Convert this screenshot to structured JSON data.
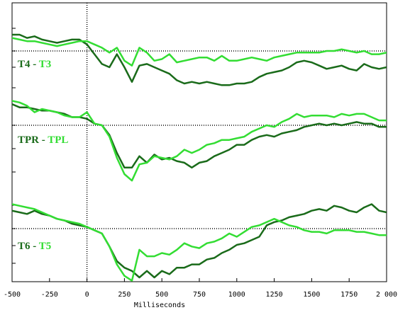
{
  "chart_data": {
    "type": "line",
    "xlabel": "Milliseconds",
    "xlim": [
      -500,
      2000
    ],
    "x_ticks": [
      -500,
      -250,
      0,
      250,
      500,
      750,
      1000,
      1250,
      1500,
      1750,
      2000
    ],
    "x_tick_labels": [
      "-500",
      "-250",
      "0",
      "250",
      "500",
      "750",
      "1000",
      "1250",
      "1500",
      "1750",
      "2 000"
    ],
    "ylim": [
      -1.8,
      1.2
    ],
    "grid": false,
    "reference_lines": {
      "x": 0,
      "y": 0
    },
    "colors": {
      "dark": "#1a6b1a",
      "light": "#33dd33",
      "axis": "#000000"
    },
    "x": [
      -600,
      -500,
      -450,
      -400,
      -350,
      -300,
      -250,
      -200,
      -150,
      -100,
      -50,
      0,
      50,
      100,
      150,
      200,
      250,
      300,
      350,
      400,
      450,
      500,
      550,
      600,
      650,
      700,
      750,
      800,
      850,
      900,
      950,
      1000,
      1050,
      1100,
      1150,
      1200,
      1250,
      1300,
      1350,
      1400,
      1450,
      1500,
      1550,
      1600,
      1650,
      1700,
      1750,
      1800,
      1850,
      1900,
      1950,
      2000
    ],
    "panels": [
      {
        "label_left": "T4",
        "label_sep": "-",
        "label_right": "T3",
        "series": [
          {
            "name": "T4",
            "tone": "dark",
            "values": [
              0.6,
              0.5,
              0.5,
              0.4,
              0.45,
              0.35,
              0.3,
              0.25,
              0.3,
              0.35,
              0.35,
              0.2,
              -0.1,
              -0.4,
              -0.5,
              -0.1,
              -0.5,
              -0.95,
              -0.45,
              -0.4,
              -0.5,
              -0.6,
              -0.7,
              -0.9,
              -1.0,
              -0.95,
              -1.0,
              -0.95,
              -1.0,
              -1.05,
              -1.05,
              -1.0,
              -1.0,
              -0.95,
              -0.8,
              -0.7,
              -0.65,
              -0.6,
              -0.5,
              -0.35,
              -0.3,
              -0.35,
              -0.45,
              -0.55,
              -0.5,
              -0.45,
              -0.55,
              -0.6,
              -0.4,
              -0.5,
              -0.55,
              -0.5
            ]
          },
          {
            "name": "T3",
            "tone": "light",
            "values": [
              0.45,
              0.4,
              0.35,
              0.3,
              0.3,
              0.25,
              0.2,
              0.15,
              0.2,
              0.25,
              0.3,
              0.3,
              0.2,
              0.1,
              -0.05,
              0.1,
              -0.3,
              -0.45,
              0.1,
              -0.05,
              -0.3,
              -0.25,
              -0.1,
              -0.35,
              -0.3,
              -0.25,
              -0.2,
              -0.2,
              -0.3,
              -0.15,
              -0.3,
              -0.3,
              -0.25,
              -0.2,
              -0.25,
              -0.3,
              -0.2,
              -0.15,
              -0.1,
              -0.05,
              -0.05,
              -0.05,
              -0.05,
              0.0,
              0.0,
              0.05,
              0.0,
              -0.05,
              0.0,
              -0.1,
              -0.1,
              -0.05
            ]
          }
        ]
      },
      {
        "label_left": "TPR",
        "label_sep": "-",
        "label_right": "TPL",
        "series": [
          {
            "name": "TPR",
            "tone": "dark",
            "values": [
              0.7,
              0.65,
              0.55,
              0.55,
              0.5,
              0.45,
              0.45,
              0.4,
              0.35,
              0.25,
              0.25,
              0.2,
              0.05,
              0.0,
              -0.3,
              -0.85,
              -1.3,
              -1.3,
              -0.95,
              -1.15,
              -0.9,
              -1.05,
              -1.0,
              -1.1,
              -1.15,
              -1.3,
              -1.15,
              -1.1,
              -0.95,
              -0.85,
              -0.75,
              -0.6,
              -0.6,
              -0.45,
              -0.35,
              -0.3,
              -0.35,
              -0.25,
              -0.2,
              -0.15,
              -0.05,
              0.0,
              0.05,
              0.0,
              0.05,
              0.0,
              0.05,
              0.1,
              0.05,
              0.05,
              -0.05,
              -0.05
            ]
          },
          {
            "name": "TPL",
            "tone": "light",
            "values": [
              0.75,
              0.75,
              0.7,
              0.6,
              0.4,
              0.5,
              0.45,
              0.4,
              0.3,
              0.25,
              0.25,
              0.4,
              0.05,
              0.0,
              -0.35,
              -1.0,
              -1.5,
              -1.7,
              -1.2,
              -1.15,
              -0.95,
              -1.0,
              -1.05,
              -0.95,
              -0.75,
              -0.85,
              -0.75,
              -0.6,
              -0.55,
              -0.45,
              -0.45,
              -0.4,
              -0.35,
              -0.2,
              -0.1,
              0.0,
              -0.05,
              0.1,
              0.2,
              0.35,
              0.25,
              0.3,
              0.3,
              0.3,
              0.25,
              0.35,
              0.3,
              0.35,
              0.35,
              0.25,
              0.15,
              0.15
            ]
          }
        ]
      },
      {
        "label_left": "T6",
        "label_sep": "-",
        "label_right": "T5",
        "series": [
          {
            "name": "T6",
            "tone": "dark",
            "values": [
              0.5,
              0.55,
              0.5,
              0.45,
              0.55,
              0.45,
              0.4,
              0.3,
              0.25,
              0.15,
              0.1,
              0.05,
              -0.05,
              -0.15,
              -0.55,
              -1.0,
              -1.2,
              -1.3,
              -1.5,
              -1.3,
              -1.5,
              -1.3,
              -1.4,
              -1.2,
              -1.2,
              -1.1,
              -1.1,
              -0.95,
              -0.9,
              -0.75,
              -0.65,
              -0.5,
              -0.45,
              -0.35,
              -0.25,
              0.1,
              0.2,
              0.25,
              0.35,
              0.4,
              0.45,
              0.55,
              0.6,
              0.55,
              0.7,
              0.65,
              0.55,
              0.5,
              0.65,
              0.75,
              0.55,
              0.5
            ]
          },
          {
            "name": "T5",
            "tone": "light",
            "values": [
              0.8,
              0.75,
              0.7,
              0.65,
              0.6,
              0.5,
              0.4,
              0.3,
              0.25,
              0.2,
              0.15,
              0.05,
              -0.05,
              -0.15,
              -0.55,
              -1.1,
              -1.45,
              -1.6,
              -0.65,
              -0.85,
              -0.85,
              -0.75,
              -0.8,
              -0.65,
              -0.45,
              -0.55,
              -0.6,
              -0.45,
              -0.4,
              -0.3,
              -0.15,
              -0.25,
              -0.1,
              0.05,
              0.1,
              0.2,
              0.3,
              0.2,
              0.1,
              0.05,
              -0.05,
              -0.1,
              -0.1,
              -0.15,
              -0.05,
              -0.05,
              -0.05,
              -0.1,
              -0.1,
              -0.15,
              -0.2,
              -0.2
            ]
          }
        ]
      }
    ]
  }
}
